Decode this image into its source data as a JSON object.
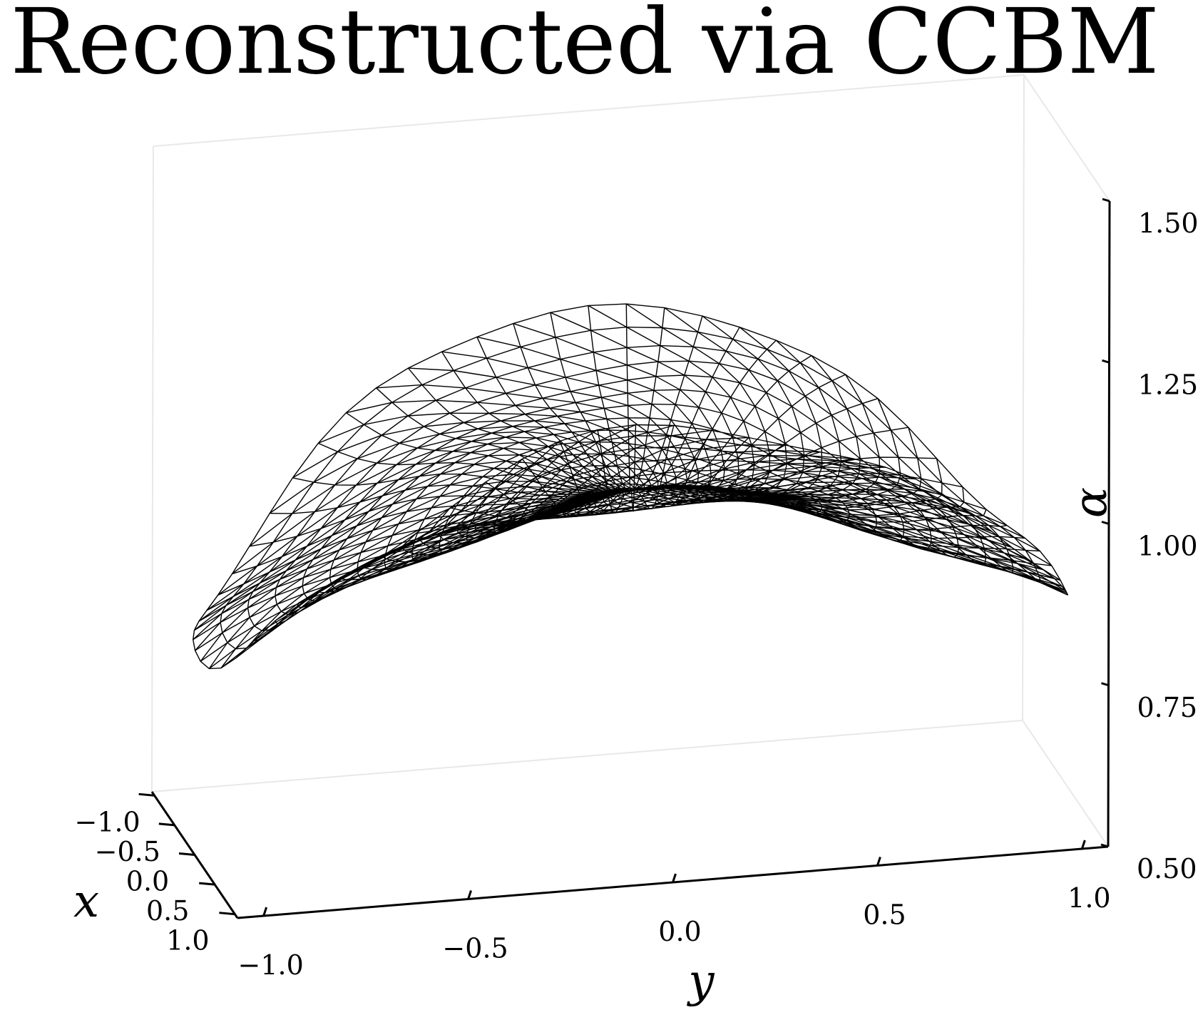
{
  "chart_data": {
    "type": "surface-wireframe-3d",
    "title": "Reconstructed via CCBM",
    "xlabel": "x",
    "ylabel": "y",
    "zlabel": "α",
    "xlim": [
      -1.0,
      1.0
    ],
    "ylim": [
      -1.0,
      1.0
    ],
    "zlim": [
      0.5,
      1.5
    ],
    "x_ticks": [
      {
        "value": -1.0,
        "label": "−1.0"
      },
      {
        "value": -0.5,
        "label": "−0.5"
      },
      {
        "value": 0.0,
        "label": "0.0"
      },
      {
        "value": 0.5,
        "label": "0.5"
      },
      {
        "value": 1.0,
        "label": "1.0"
      }
    ],
    "y_ticks": [
      {
        "value": -1.0,
        "label": "−1.0"
      },
      {
        "value": -0.5,
        "label": "−0.5"
      },
      {
        "value": 0.0,
        "label": "0.0"
      },
      {
        "value": 0.5,
        "label": "0.5"
      },
      {
        "value": 1.0,
        "label": "1.0"
      }
    ],
    "z_ticks": [
      {
        "value": 0.5,
        "label": "0.50"
      },
      {
        "value": 0.75,
        "label": "0.75"
      },
      {
        "value": 1.0,
        "label": "1.00"
      },
      {
        "value": 1.25,
        "label": "1.25"
      },
      {
        "value": 1.5,
        "label": "1.50"
      }
    ],
    "surface": {
      "domain": "unit disk",
      "approximate_form": "alpha = 1 + 0.2*(x^2 - y^2)",
      "mesh": "triangulated wireframe",
      "z_at_center": 1.0,
      "z_at_x_edges": 1.2,
      "z_at_y_edges": 0.8
    },
    "grid": false,
    "mesh_color": "#000000",
    "pane_edge_color": "#e8e8e8"
  }
}
